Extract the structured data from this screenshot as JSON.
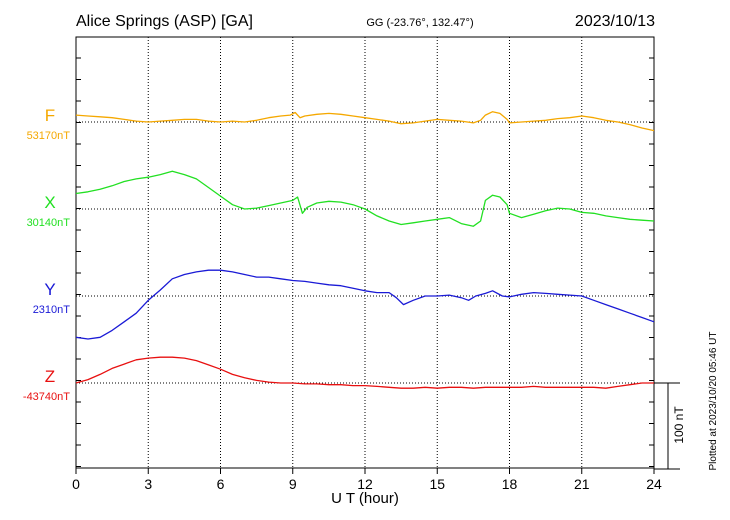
{
  "header": {
    "station": "Alice Springs (ASP)  [GA]",
    "coords": "GG (-23.76°, 132.47°)",
    "date": "2023/10/13"
  },
  "footer": {
    "plotted": "Plotted at 2023/10/20 05:46 UT"
  },
  "scale_bar": {
    "label": "100 nT",
    "value_nT": 100
  },
  "chart_data": {
    "type": "line",
    "title": "Alice Springs (ASP)  [GA]",
    "xlabel": "U T (hour)",
    "ylabel": "",
    "xlim": [
      0,
      24
    ],
    "x_ticks": [
      0,
      3,
      6,
      9,
      12,
      15,
      18,
      21,
      24
    ],
    "x_tick_labels": [
      "0",
      "3",
      "6",
      "9",
      "12",
      "15",
      "18",
      "21",
      "24"
    ],
    "grid": true,
    "units": "nT",
    "series": [
      {
        "name": "F",
        "baseline_label": "53170nT",
        "baseline": 53170,
        "color": "#f5a800",
        "x": [
          0,
          0.5,
          1,
          1.5,
          2,
          2.5,
          3,
          3.5,
          4,
          4.5,
          5,
          5.5,
          6,
          6.5,
          7,
          7.5,
          8,
          8.5,
          8.9,
          9.1,
          9.3,
          9.5,
          10,
          10.5,
          11,
          11.5,
          12,
          12.5,
          13,
          13.5,
          14,
          14.5,
          15,
          15.5,
          16,
          16.5,
          16.8,
          17,
          17.3,
          17.6,
          17.9,
          18,
          18.5,
          19,
          19.5,
          20,
          20.5,
          21,
          21.5,
          22,
          22.5,
          23,
          23.5,
          24
        ],
        "y": [
          8,
          7,
          6,
          5,
          3,
          1,
          0,
          1,
          2,
          3,
          3,
          1,
          0,
          1,
          0,
          2,
          5,
          7,
          8,
          11,
          5,
          7,
          9,
          10,
          9,
          7,
          5,
          3,
          1,
          -2,
          -1,
          1,
          3,
          2,
          1,
          -1,
          2,
          8,
          12,
          10,
          3,
          -1,
          0,
          1,
          2,
          4,
          5,
          7,
          5,
          2,
          0,
          -3,
          -7,
          -10
        ]
      },
      {
        "name": "X",
        "baseline_label": "30140nT",
        "baseline": 30140,
        "color": "#22e022",
        "x": [
          0,
          0.5,
          1,
          1.5,
          2,
          2.5,
          3,
          3.5,
          4,
          4.5,
          5,
          5.5,
          6,
          6.5,
          7,
          7.5,
          8,
          8.5,
          9,
          9.2,
          9.4,
          9.6,
          10,
          10.5,
          11,
          11.5,
          12,
          12.5,
          13,
          13.5,
          14,
          14.5,
          15,
          15.5,
          16,
          16.5,
          16.8,
          17,
          17.3,
          17.6,
          17.9,
          18,
          18.5,
          19,
          19.5,
          20,
          20.5,
          21,
          21.5,
          22,
          22.5,
          23,
          23.5,
          24
        ],
        "y": [
          18,
          20,
          23,
          27,
          32,
          35,
          37,
          40,
          44,
          40,
          35,
          25,
          15,
          5,
          0,
          1,
          4,
          7,
          10,
          14,
          -5,
          2,
          7,
          9,
          8,
          5,
          0,
          -8,
          -14,
          -18,
          -16,
          -14,
          -12,
          -10,
          -17,
          -20,
          -14,
          10,
          16,
          14,
          5,
          -5,
          -10,
          -6,
          -2,
          1,
          0,
          -4,
          -5,
          -8,
          -10,
          -12,
          -13,
          -14
        ]
      },
      {
        "name": "Y",
        "baseline_label": "2310nT",
        "baseline": 2310,
        "color": "#1a1ad6",
        "x": [
          0,
          0.5,
          1,
          1.5,
          2,
          2.5,
          3,
          3.5,
          4,
          4.5,
          5,
          5.5,
          6,
          6.5,
          7,
          7.5,
          8,
          8.5,
          9,
          9.5,
          10,
          10.5,
          11,
          11.5,
          12,
          12.5,
          13,
          13.3,
          13.6,
          14,
          14.5,
          15,
          15.5,
          16,
          16.3,
          16.6,
          17,
          17.3,
          17.7,
          18,
          18.5,
          19,
          19.5,
          20,
          20.5,
          21,
          21.5,
          22,
          22.5,
          23,
          23.5,
          24
        ],
        "y": [
          -48,
          -50,
          -48,
          -40,
          -30,
          -20,
          -5,
          7,
          20,
          25,
          28,
          30,
          30,
          28,
          25,
          22,
          22,
          20,
          18,
          17,
          15,
          13,
          12,
          9,
          6,
          4,
          4,
          -2,
          -10,
          -5,
          0,
          0,
          1,
          -2,
          -5,
          0,
          3,
          6,
          0,
          -1,
          2,
          4,
          3,
          2,
          1,
          0,
          -5,
          -10,
          -15,
          -20,
          -25,
          -30
        ]
      },
      {
        "name": "Z",
        "baseline_label": "-43740nT",
        "baseline": -43740,
        "color": "#e81010",
        "x": [
          0,
          0.5,
          1,
          1.5,
          2,
          2.5,
          3,
          3.5,
          4,
          4.5,
          5,
          5.5,
          6,
          6.5,
          7,
          7.5,
          8,
          8.5,
          9,
          9.5,
          10,
          10.5,
          11,
          11.5,
          12,
          12.5,
          13,
          13.5,
          14,
          14.5,
          15,
          15.5,
          16,
          16.5,
          17,
          17.5,
          18,
          18.5,
          19,
          19.5,
          20,
          20.5,
          21,
          21.5,
          22,
          22.5,
          23,
          23.5,
          24
        ],
        "y": [
          0,
          4,
          10,
          17,
          22,
          27,
          29,
          30,
          30,
          29,
          26,
          21,
          16,
          10,
          6,
          3,
          1,
          0,
          0,
          -1,
          -1,
          -2,
          -2,
          -3,
          -3,
          -4,
          -5,
          -6,
          -6,
          -5,
          -6,
          -5,
          -5,
          -6,
          -5,
          -5,
          -5,
          -5,
          -4,
          -5,
          -5,
          -5,
          -5,
          -5,
          -6,
          -4,
          -2,
          0,
          0
        ]
      }
    ]
  }
}
